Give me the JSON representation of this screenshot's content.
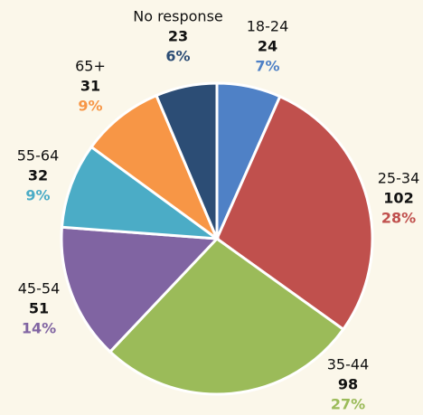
{
  "chart_data": {
    "type": "pie",
    "categories": [
      "18-24",
      "25-34",
      "35-44",
      "45-54",
      "55-64",
      "65+",
      "No response"
    ],
    "values": [
      24,
      102,
      98,
      51,
      32,
      31,
      23
    ],
    "colors": [
      "#4f81c6",
      "#c0504d",
      "#9bbb59",
      "#8064a2",
      "#4bacc6",
      "#f79646",
      "#2c4d75"
    ],
    "shares": {
      "values": [
        7,
        28,
        27,
        14,
        9,
        9,
        6
      ],
      "value_labels": [
        "7%",
        "28%",
        "27%",
        "14%",
        "9%",
        "9%",
        "6%"
      ]
    }
  }
}
